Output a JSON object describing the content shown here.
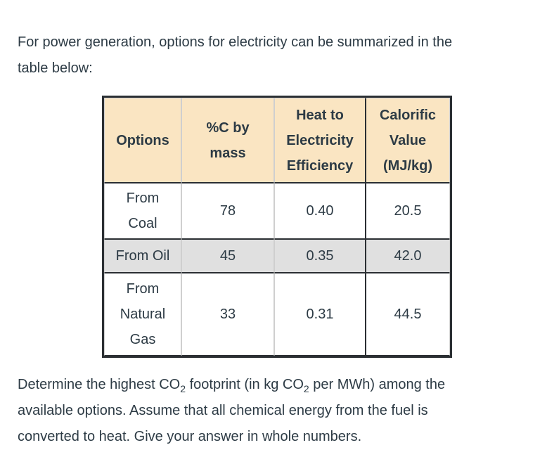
{
  "colors": {
    "text": "#2d3b45",
    "header_background": "#fae5c2",
    "shaded_row_background": "#e0e0e0",
    "border_dark": "#2b2f33",
    "border_light": "#cfcfcf",
    "page_background": "#ffffff"
  },
  "intro": {
    "text": "For power generation, options for electricity can be summarized in the\ntable below:"
  },
  "table": {
    "headers": [
      {
        "label": "Options"
      },
      {
        "label": "%C by\nmass"
      },
      {
        "label": "Heat to\nElectricity\nEfficiency"
      },
      {
        "label": "Calorific\nValue\n(MJ/kg)"
      }
    ],
    "rows": [
      {
        "option": "From\nCoal",
        "c_by_mass": "78",
        "efficiency": "0.40",
        "calorific": "20.5"
      },
      {
        "option": "From Oil",
        "c_by_mass": "45",
        "efficiency": "0.35",
        "calorific": "42.0"
      },
      {
        "option": "From\nNatural\nGas",
        "c_by_mass": "33",
        "efficiency": "0.31",
        "calorific": "44.5"
      }
    ]
  },
  "question": {
    "parts": [
      {
        "text": "Determine the highest CO"
      },
      {
        "sub": "2"
      },
      {
        "text": " footprint (in kg CO"
      },
      {
        "sub": "2"
      },
      {
        "text": " per MWh) among the\navailable options. Assume that all chemical energy from the fuel is\nconverted to heat. Give your answer in whole numbers."
      }
    ]
  }
}
